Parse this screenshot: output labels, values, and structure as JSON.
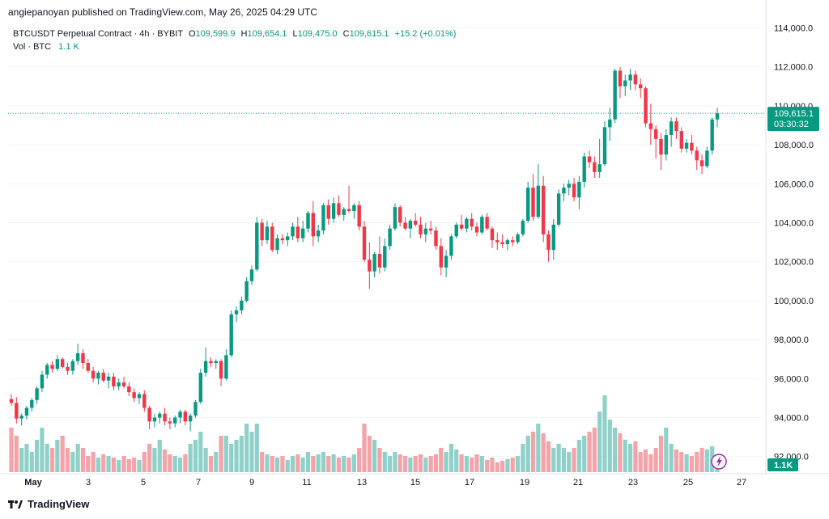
{
  "header": {
    "publisher": "angiepanoyan published on TradingView.com, May 26, 2025 04:29 UTC"
  },
  "legend": {
    "symbol": "BTCUSDT Perpetual Contract · 4h · BYBIT",
    "open_label": "O",
    "open": "109,599.9",
    "high_label": "H",
    "high": "109,654.1",
    "low_label": "L",
    "low": "109,475.0",
    "close_label": "C",
    "close": "109,615.1",
    "change": "+15.2 (+0.01%)",
    "vol_label": "Vol · BTC",
    "vol_value": "1.1 K"
  },
  "price_tag": {
    "price": "109,615.1",
    "countdown": "03:30:32"
  },
  "vol_tag": "1.1K",
  "brand": {
    "name": "TradingView"
  },
  "colors": {
    "up": "#089981",
    "down": "#f23645",
    "vol_up": "#8fd1c9",
    "vol_down": "#f5a3a8",
    "grid": "#f0f3fa"
  },
  "chart_data": {
    "type": "candlestick",
    "y_ticks": [
      92000,
      94000,
      96000,
      98000,
      100000,
      102000,
      104000,
      106000,
      108000,
      110000,
      112000,
      114000
    ],
    "y_tick_labels": [
      "92,000.0",
      "94,000.0",
      "96,000.0",
      "98,000.0",
      "100,000.0",
      "102,000.0",
      "104,000.0",
      "106,000.0",
      "108,000.0",
      "110,000.0",
      "112,000.0",
      "114,000.0"
    ],
    "x_tick_labels": [
      "May",
      "3",
      "5",
      "7",
      "9",
      "11",
      "13",
      "15",
      "17",
      "19",
      "21",
      "23",
      "25",
      "27"
    ],
    "ylim": [
      91200,
      114600
    ],
    "last_price": 109615.1,
    "candles": [
      [
        94950,
        95200,
        94600,
        94750
      ],
      [
        94750,
        95050,
        93700,
        93950
      ],
      [
        93950,
        94200,
        93600,
        94100
      ],
      [
        94100,
        94600,
        93900,
        94500
      ],
      [
        94500,
        95000,
        94300,
        94900
      ],
      [
        94900,
        95600,
        94700,
        95500
      ],
      [
        95500,
        96400,
        95300,
        96200
      ],
      [
        96200,
        96800,
        96000,
        96700
      ],
      [
        96700,
        96900,
        96300,
        96500
      ],
      [
        96500,
        97200,
        96400,
        97000
      ],
      [
        97000,
        97100,
        96500,
        96600
      ],
      [
        96600,
        96800,
        96200,
        96400
      ],
      [
        96400,
        97000,
        96200,
        96900
      ],
      [
        96900,
        97800,
        96700,
        97300
      ],
      [
        97300,
        97500,
        96500,
        96800
      ],
      [
        96800,
        97000,
        96300,
        96400
      ],
      [
        96400,
        96600,
        95800,
        96000
      ],
      [
        96000,
        96400,
        95700,
        96300
      ],
      [
        96300,
        96500,
        95800,
        95900
      ],
      [
        95900,
        96300,
        95500,
        96100
      ],
      [
        96100,
        96300,
        95400,
        95600
      ],
      [
        95600,
        96000,
        95400,
        95800
      ],
      [
        95800,
        96100,
        95500,
        95600
      ],
      [
        95600,
        95800,
        95100,
        95300
      ],
      [
        95300,
        95500,
        94800,
        95000
      ],
      [
        95000,
        95300,
        94700,
        95200
      ],
      [
        95200,
        95400,
        94300,
        94500
      ],
      [
        94500,
        94600,
        93400,
        93800
      ],
      [
        93800,
        94200,
        93500,
        94000
      ],
      [
        94000,
        94300,
        93700,
        94200
      ],
      [
        94200,
        94500,
        93600,
        93800
      ],
      [
        93800,
        94000,
        93400,
        93700
      ],
      [
        93700,
        94100,
        93500,
        94000
      ],
      [
        94000,
        94400,
        93700,
        94300
      ],
      [
        94300,
        94400,
        93600,
        93800
      ],
      [
        93800,
        94200,
        93300,
        94100
      ],
      [
        94100,
        94900,
        94000,
        94800
      ],
      [
        94800,
        96500,
        94700,
        96300
      ],
      [
        96300,
        97600,
        96100,
        96900
      ],
      [
        96900,
        97100,
        96600,
        96800
      ],
      [
        96800,
        97000,
        96500,
        96900
      ],
      [
        96900,
        97000,
        95600,
        96000
      ],
      [
        96000,
        97500,
        95900,
        97200
      ],
      [
        97200,
        99500,
        97100,
        99300
      ],
      [
        99300,
        99700,
        98900,
        99500
      ],
      [
        99500,
        100200,
        99300,
        100000
      ],
      [
        100000,
        101200,
        99900,
        101000
      ],
      [
        101000,
        101800,
        100800,
        101600
      ],
      [
        101600,
        104300,
        101500,
        104000
      ],
      [
        104000,
        104200,
        102800,
        103100
      ],
      [
        103100,
        104100,
        102900,
        103800
      ],
      [
        103800,
        104000,
        102500,
        102600
      ],
      [
        102600,
        103400,
        102400,
        103200
      ],
      [
        103200,
        103400,
        102900,
        103100
      ],
      [
        103100,
        103500,
        102800,
        103300
      ],
      [
        103300,
        104000,
        103100,
        103800
      ],
      [
        103800,
        104300,
        103000,
        103200
      ],
      [
        103200,
        104100,
        103000,
        103700
      ],
      [
        103700,
        104600,
        103500,
        104500
      ],
      [
        104500,
        105100,
        102800,
        103300
      ],
      [
        103300,
        103900,
        103000,
        103600
      ],
      [
        103600,
        105000,
        103400,
        104900
      ],
      [
        104900,
        105200,
        103900,
        104200
      ],
      [
        104200,
        105300,
        104000,
        105000
      ],
      [
        105000,
        105400,
        104300,
        104400
      ],
      [
        104400,
        104800,
        104100,
        104700
      ],
      [
        104700,
        105900,
        104500,
        104600
      ],
      [
        104600,
        105000,
        104200,
        104900
      ],
      [
        104900,
        105100,
        103600,
        103800
      ],
      [
        103800,
        104100,
        102000,
        102100
      ],
      [
        102100,
        103000,
        100600,
        101500
      ],
      [
        101500,
        102500,
        101200,
        102400
      ],
      [
        102400,
        103300,
        101400,
        101700
      ],
      [
        101700,
        103200,
        101500,
        102800
      ],
      [
        102800,
        103900,
        102600,
        103700
      ],
      [
        103700,
        105000,
        103600,
        104800
      ],
      [
        104800,
        104900,
        103800,
        104000
      ],
      [
        104000,
        104300,
        103600,
        103700
      ],
      [
        103700,
        104200,
        103200,
        104100
      ],
      [
        104100,
        104500,
        103800,
        103900
      ],
      [
        103900,
        104300,
        103200,
        103400
      ],
      [
        103400,
        104000,
        103000,
        103700
      ],
      [
        103700,
        104100,
        103400,
        103600
      ],
      [
        103600,
        103800,
        102600,
        102800
      ],
      [
        102800,
        103200,
        101300,
        101700
      ],
      [
        101700,
        102600,
        101200,
        102300
      ],
      [
        102300,
        103400,
        102100,
        103300
      ],
      [
        103300,
        104000,
        103200,
        103900
      ],
      [
        103900,
        104400,
        103600,
        103700
      ],
      [
        103700,
        104300,
        103500,
        104200
      ],
      [
        104200,
        104500,
        103600,
        103800
      ],
      [
        103800,
        104000,
        103300,
        103500
      ],
      [
        103500,
        104400,
        103400,
        104300
      ],
      [
        104300,
        104500,
        103600,
        103700
      ],
      [
        103700,
        103800,
        102700,
        103100
      ],
      [
        103100,
        103500,
        102600,
        103000
      ],
      [
        103000,
        103400,
        102700,
        102900
      ],
      [
        102900,
        103200,
        102600,
        103100
      ],
      [
        103100,
        103300,
        102800,
        103000
      ],
      [
        103000,
        103500,
        102900,
        103400
      ],
      [
        103400,
        104200,
        103300,
        104100
      ],
      [
        104100,
        106100,
        104000,
        105800
      ],
      [
        105800,
        106500,
        104100,
        104300
      ],
      [
        104300,
        107000,
        104200,
        105900
      ],
      [
        105900,
        106400,
        103000,
        103400
      ],
      [
        103400,
        103600,
        102000,
        102600
      ],
      [
        102600,
        104200,
        102100,
        103900
      ],
      [
        103900,
        105700,
        103800,
        105500
      ],
      [
        105500,
        106000,
        105100,
        105800
      ],
      [
        105800,
        106200,
        105400,
        106000
      ],
      [
        106000,
        106300,
        105100,
        105300
      ],
      [
        105300,
        106400,
        104700,
        106100
      ],
      [
        106100,
        107600,
        105800,
        107400
      ],
      [
        107400,
        107700,
        106800,
        107100
      ],
      [
        107100,
        107400,
        106300,
        106600
      ],
      [
        106600,
        108300,
        106300,
        107000
      ],
      [
        107000,
        109200,
        106900,
        108900
      ],
      [
        108900,
        109900,
        108200,
        109300
      ],
      [
        109300,
        111900,
        109100,
        111800
      ],
      [
        111800,
        112000,
        110400,
        111000
      ],
      [
        111000,
        111600,
        110500,
        111300
      ],
      [
        111300,
        111900,
        110800,
        111600
      ],
      [
        111600,
        111800,
        110800,
        111100
      ],
      [
        111100,
        111400,
        110400,
        110900
      ],
      [
        110900,
        111000,
        108900,
        109100
      ],
      [
        109100,
        110100,
        108000,
        108800
      ],
      [
        108800,
        109000,
        107300,
        108300
      ],
      [
        108300,
        108600,
        106700,
        107500
      ],
      [
        107500,
        108800,
        107200,
        108500
      ],
      [
        108500,
        109400,
        107900,
        109200
      ],
      [
        109200,
        109400,
        108300,
        108700
      ],
      [
        108700,
        108900,
        107600,
        107800
      ],
      [
        107800,
        108300,
        107600,
        108100
      ],
      [
        108100,
        108500,
        107500,
        107700
      ],
      [
        107700,
        107900,
        106700,
        107200
      ],
      [
        107200,
        107500,
        106500,
        106900
      ],
      [
        106900,
        107900,
        106800,
        107700
      ],
      [
        107700,
        109400,
        107500,
        109300
      ],
      [
        109300,
        109900,
        108900,
        109615
      ]
    ],
    "volume": [
      55,
      45,
      30,
      35,
      25,
      40,
      55,
      35,
      30,
      40,
      45,
      30,
      25,
      35,
      30,
      20,
      25,
      18,
      22,
      20,
      18,
      15,
      20,
      16,
      18,
      15,
      25,
      35,
      30,
      40,
      28,
      22,
      20,
      18,
      22,
      35,
      40,
      50,
      30,
      20,
      25,
      45,
      45,
      35,
      40,
      45,
      60,
      50,
      60,
      25,
      22,
      20,
      18,
      20,
      15,
      20,
      22,
      18,
      25,
      20,
      22,
      25,
      20,
      22,
      18,
      20,
      18,
      22,
      30,
      60,
      45,
      40,
      30,
      25,
      20,
      25,
      22,
      20,
      18,
      20,
      22,
      18,
      20,
      22,
      30,
      25,
      35,
      28,
      22,
      20,
      18,
      22,
      20,
      15,
      18,
      12,
      14,
      16,
      18,
      20,
      35,
      45,
      50,
      60,
      48,
      38,
      30,
      35,
      30,
      25,
      30,
      40,
      45,
      50,
      55,
      75,
      95,
      65,
      55,
      48,
      40,
      35,
      38,
      25,
      28,
      22,
      30,
      45,
      55,
      35,
      28,
      25,
      22,
      20,
      25,
      30,
      28,
      32,
      22,
      35
    ],
    "volume_ylim": [
      0,
      150
    ]
  }
}
